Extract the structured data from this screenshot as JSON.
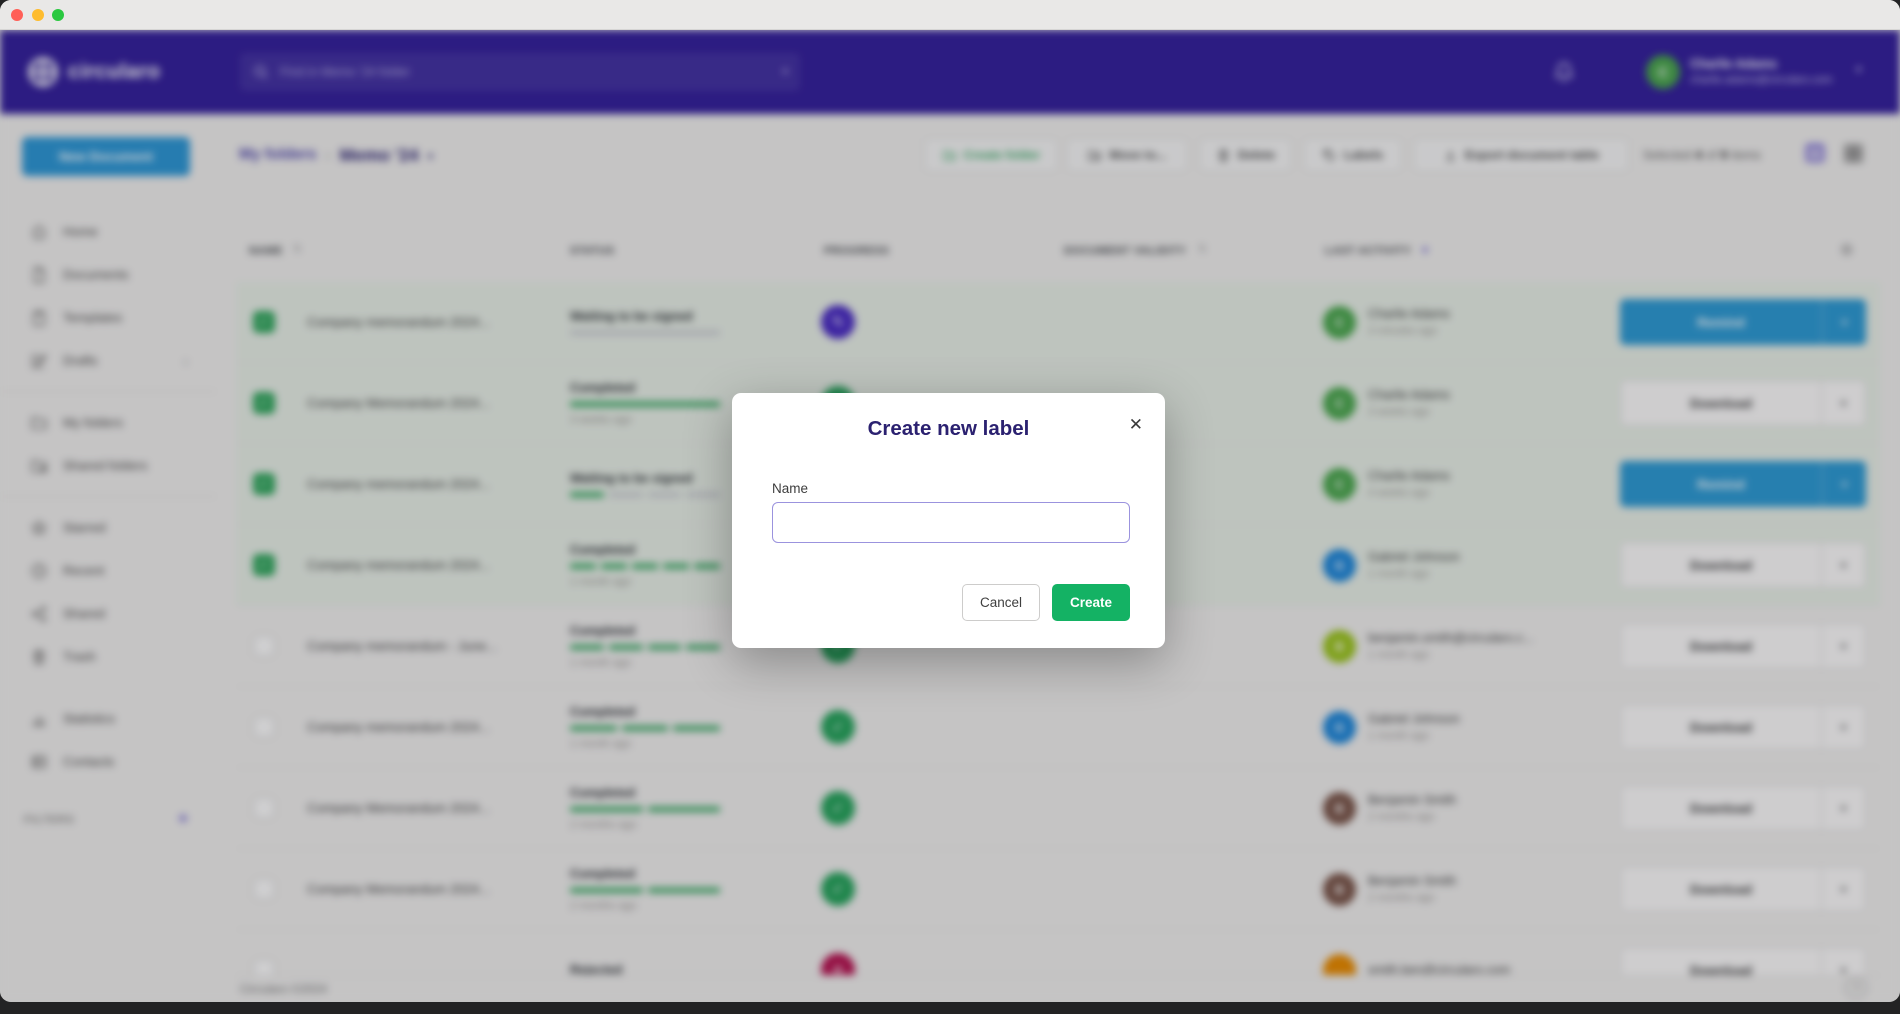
{
  "icons": {
    "close": "✕",
    "caret_down": "▾",
    "sort_both": "⇅",
    "gear": "⚙",
    "chevron_right": "›",
    "plus": "+",
    "help": "?",
    "check": "✓",
    "pen": "✎",
    "cross": "✕"
  },
  "colors": {
    "header_purple": "#35219b",
    "accent_blue": "#2e97d4",
    "green": "#31a65c",
    "sign_purple": "#4a2cc2",
    "done_green": "#27a35b",
    "rejected_red": "#b5124f",
    "brand_indigo": "#2b2170",
    "create_green": "#14b264"
  },
  "header": {
    "logo_text": "circularo",
    "search": {
      "placeholder": "Find in Memo '24 folder"
    },
    "user": {
      "name": "Charlie Adams",
      "email": "charlie.adams@circularo.com",
      "avatar_initial": "C"
    }
  },
  "sidebar": {
    "new_document_label": "New Document",
    "items": [
      {
        "label": "Home",
        "icon": "home-icon"
      },
      {
        "label": "Documents",
        "icon": "document-icon"
      },
      {
        "label": "Templates",
        "icon": "template-icon"
      },
      {
        "label": "Drafts",
        "icon": "drafts-icon",
        "chevron": true
      },
      {
        "label": "My folders",
        "icon": "folder-icon",
        "divider_before": true
      },
      {
        "label": "Shared folders",
        "icon": "shared-folder-icon"
      },
      {
        "label": "Starred",
        "icon": "star-icon",
        "divider_before": true
      },
      {
        "label": "Recent",
        "icon": "clock-icon"
      },
      {
        "label": "Shared",
        "icon": "share-icon"
      },
      {
        "label": "Trash",
        "icon": "trash-icon"
      },
      {
        "label": "Statistics",
        "icon": "stats-icon",
        "gap_before": true
      },
      {
        "label": "Contacts",
        "icon": "contacts-icon"
      }
    ],
    "filters_label": "FILTERS"
  },
  "breadcrumb": {
    "parent": "My folders",
    "separator": "›",
    "current": "Memo '24"
  },
  "toolbar": {
    "buttons": [
      {
        "label": "Create folder",
        "icon": "folder-plus-icon",
        "style": "green"
      },
      {
        "label": "Move to...",
        "icon": "folder-move-icon"
      },
      {
        "label": "Delete",
        "icon": "trash-icon"
      },
      {
        "label": "Labels",
        "icon": "tag-icon"
      },
      {
        "label": "Export document table",
        "icon": "export-icon"
      }
    ],
    "selection": {
      "prefix": "Selected",
      "selected_count": "4",
      "of_word": "of",
      "total_count": "9",
      "suffix": "items"
    }
  },
  "table": {
    "columns": [
      {
        "label": "NAME",
        "sort": "both"
      },
      {
        "label": "STATUS"
      },
      {
        "label": "PROGRESS"
      },
      {
        "label": "DOCUMENT VALIDITY",
        "sort": "both"
      },
      {
        "label": "LAST ACTIVITY",
        "sort": "desc"
      }
    ],
    "rows": [
      {
        "selected": true,
        "name": "Company memorandum 2024...",
        "status": "Waiting to be signed",
        "status_time": "",
        "bar": {
          "filled": 0,
          "total": 1
        },
        "badge": "sign",
        "avatar": {
          "initial": "C",
          "color": "#4aa64c"
        },
        "activity": {
          "name": "Charlie Adams",
          "time": "3 minutes ago"
        },
        "action": "Remind"
      },
      {
        "selected": true,
        "name": "Company Memorandum 2024...",
        "status": "Completed",
        "status_time": "3 weeks ago",
        "bar": {
          "filled": 1,
          "total": 1
        },
        "badge": "done",
        "avatar": {
          "initial": "C",
          "color": "#4aa64c"
        },
        "activity": {
          "name": "Charlie Adams",
          "time": "3 weeks ago"
        },
        "action": "Download"
      },
      {
        "selected": true,
        "name": "Company memorandum 2024...",
        "status": "Waiting to be signed",
        "status_time": "",
        "bar": {
          "filled": 1,
          "total": 4
        },
        "badge": "sign",
        "avatar": {
          "initial": "C",
          "color": "#4aa64c"
        },
        "activity": {
          "name": "Charlie Adams",
          "time": "4 weeks ago"
        },
        "action": "Remind"
      },
      {
        "selected": true,
        "name": "Company memorandum 2024...",
        "status": "Completed",
        "status_time": "1 month ago",
        "bar": {
          "filled": 5,
          "total": 5
        },
        "badge": "done",
        "avatar": {
          "initial": "G",
          "color": "#1d86d8"
        },
        "activity": {
          "name": "Gabriel Johnson",
          "time": "1 month ago"
        },
        "action": "Download"
      },
      {
        "selected": false,
        "name": "Company memorandum - June...",
        "status": "Completed",
        "status_time": "1 month ago",
        "bar": {
          "filled": 4,
          "total": 4
        },
        "badge": "done",
        "avatar": {
          "initial": "B",
          "color": "#9ac31c"
        },
        "activity": {
          "name": "benjamin.smith@circularo.c...",
          "time": "1 month ago"
        },
        "action": "Download"
      },
      {
        "selected": false,
        "name": "Company memorandum 2024...",
        "status": "Completed",
        "status_time": "1 month ago",
        "bar": {
          "filled": 3,
          "total": 3
        },
        "badge": "done",
        "avatar": {
          "initial": "G",
          "color": "#1d86d8"
        },
        "activity": {
          "name": "Gabriel Johnson",
          "time": "1 month ago"
        },
        "action": "Download"
      },
      {
        "selected": false,
        "name": "Company Memorandum 2024...",
        "status": "Completed",
        "status_time": "2 months ago",
        "bar": {
          "filled": 2,
          "total": 2
        },
        "badge": "done",
        "avatar": {
          "initial": "B",
          "color": "#7a5548"
        },
        "activity": {
          "name": "Benjamin Smith",
          "time": "2 months ago"
        },
        "action": "Download"
      },
      {
        "selected": false,
        "name": "Company Memorandum 2024...",
        "status": "Completed",
        "status_time": "2 months ago",
        "bar": {
          "filled": 2,
          "total": 2
        },
        "badge": "done",
        "avatar": {
          "initial": "B",
          "color": "#7a5548"
        },
        "activity": {
          "name": "Benjamin Smith",
          "time": "2 months ago"
        },
        "action": "Download"
      },
      {
        "selected": false,
        "name": "",
        "status": "Rejected",
        "status_time": "",
        "bar": {
          "filled": 0,
          "total": 0
        },
        "badge": "rejected",
        "avatar": {
          "initial": "",
          "color": "#e88b00"
        },
        "activity": {
          "name": "smith.ben@circularo.com",
          "time": ""
        },
        "action": "Download"
      }
    ]
  },
  "modal": {
    "title": "Create new label",
    "name_label": "Name",
    "input_value": "",
    "cancel_label": "Cancel",
    "create_label": "Create"
  },
  "footer": {
    "copyright": "Circularo ©2024"
  }
}
